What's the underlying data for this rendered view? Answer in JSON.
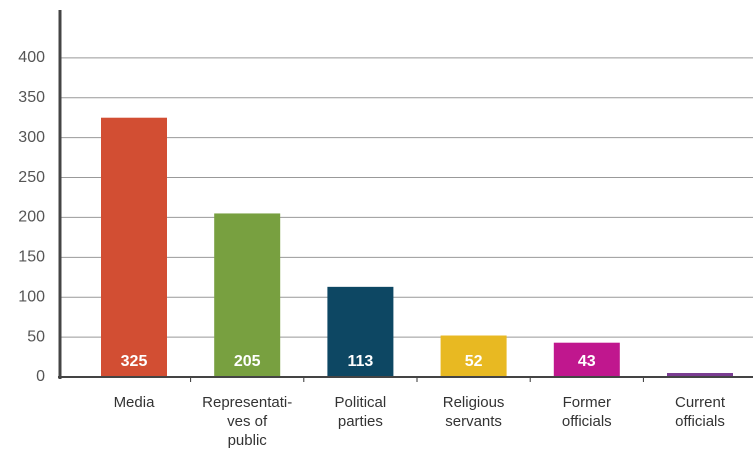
{
  "chart_data": {
    "type": "bar",
    "categories": [
      "Media",
      "Representati-\nves of\npublic",
      "Political\nparties",
      "Religious\nservants",
      "Former\nofficials",
      "Current\nofficials"
    ],
    "values": [
      325,
      205,
      113,
      52,
      43,
      5
    ],
    "colors": [
      "#d24e33",
      "#78a040",
      "#0d4763",
      "#e8b922",
      "#c0178e",
      "#7a3d92"
    ],
    "ylim": [
      0,
      460
    ],
    "yticks": [
      0,
      50,
      100,
      150,
      200,
      250,
      300,
      350,
      400
    ],
    "grid": true
  }
}
